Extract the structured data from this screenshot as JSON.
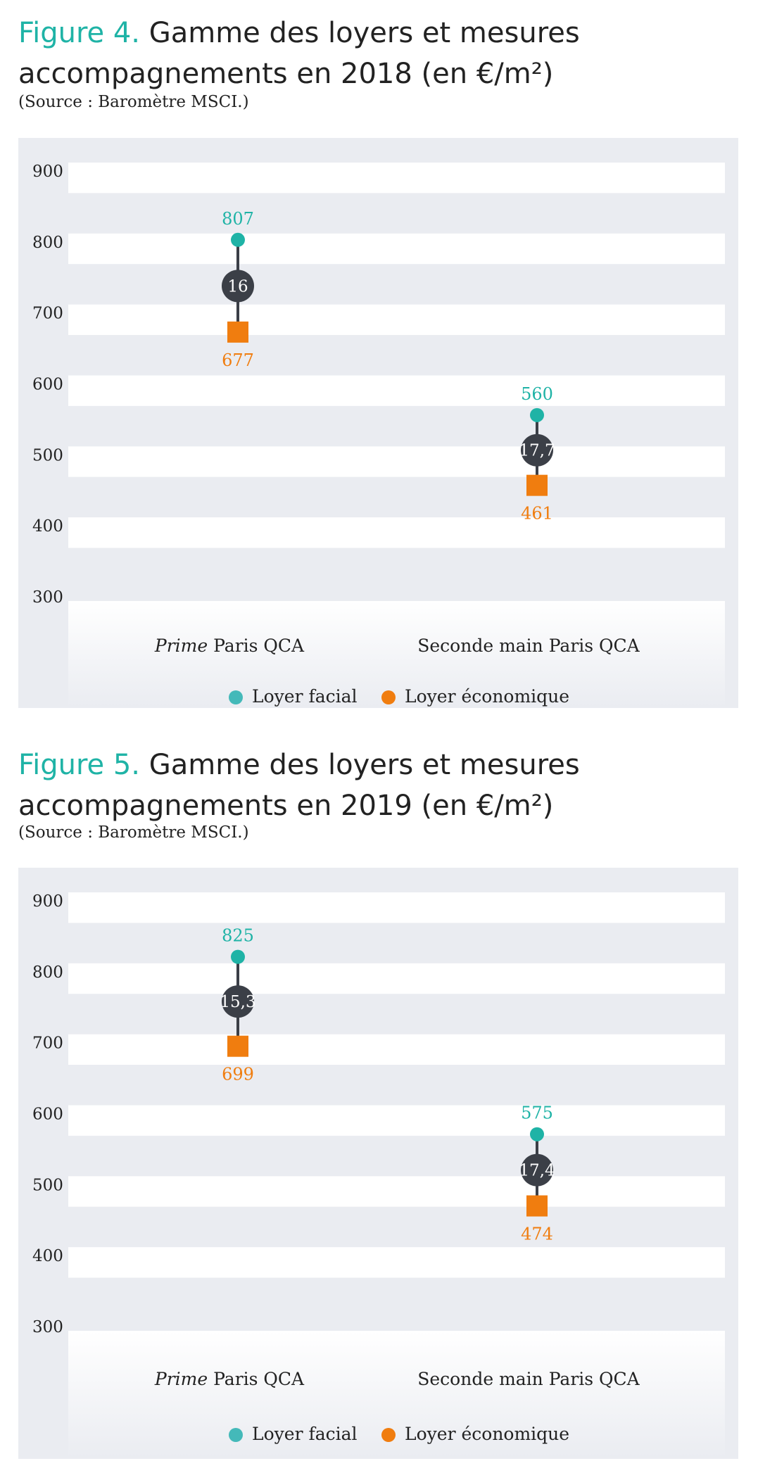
{
  "figures": [
    {
      "number": "Figure 4.",
      "title": "Gamme des loyers et mesures accompagnements en 2018 (en €/m²)",
      "source": "(Source : Baromètre MSCI.)"
    },
    {
      "number": "Figure 5.",
      "title": "Gamme des loyers et mesures accompagnements en 2019 (en €/m²)",
      "source": "(Source : Baromètre MSCI.)"
    }
  ],
  "chart_data": [
    {
      "type": "dumbbell",
      "title": "Gamme des loyers et mesures accompagnements en 2018 (en €/m²)",
      "ylim": [
        300,
        900
      ],
      "yticks": [
        900,
        800,
        700,
        600,
        500,
        400,
        300
      ],
      "categories": [
        {
          "prefix": "Prime",
          "label": " Paris QCA"
        },
        {
          "prefix": "",
          "label": "Seconde main Paris QCA"
        }
      ],
      "series": [
        {
          "name": "Loyer facial",
          "color": "#1fb3a6",
          "values": [
            807,
            560
          ]
        },
        {
          "name": "Loyer économique",
          "color": "#f07d0f",
          "values": [
            677,
            461
          ]
        }
      ],
      "spread": [
        "16",
        "17,7"
      ],
      "legend": "bottom-center",
      "colors": {
        "facial": "#1fb3a6",
        "economique": "#f07d0f",
        "spread_marker": "#3b3f47",
        "legend_facial": "#44b9b9"
      }
    },
    {
      "type": "dumbbell",
      "title": "Gamme des loyers et mesures accompagnements en 2019 (en €/m²)",
      "ylim": [
        300,
        900
      ],
      "yticks": [
        900,
        800,
        700,
        600,
        500,
        400,
        300
      ],
      "categories": [
        {
          "prefix": "Prime",
          "label": " Paris QCA"
        },
        {
          "prefix": "",
          "label": "Seconde main Paris QCA"
        }
      ],
      "series": [
        {
          "name": "Loyer facial",
          "color": "#1fb3a6",
          "values": [
            825,
            575
          ]
        },
        {
          "name": "Loyer économique",
          "color": "#f07d0f",
          "values": [
            699,
            474
          ]
        }
      ],
      "spread": [
        "15,3",
        "17,4"
      ],
      "legend": "bottom-center",
      "colors": {
        "facial": "#1fb3a6",
        "economique": "#f07d0f",
        "spread_marker": "#3b3f47",
        "legend_facial": "#44b9b9"
      }
    }
  ]
}
